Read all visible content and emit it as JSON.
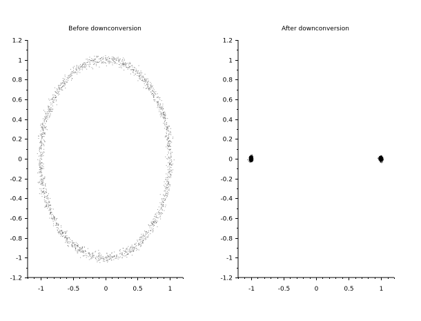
{
  "chart_data": [
    {
      "type": "scatter",
      "title": "Before downconversion",
      "xlabel": "",
      "ylabel": "",
      "xlim": [
        -1.2,
        1.2
      ],
      "ylim": [
        -1.2,
        1.2
      ],
      "x_ticks": [
        -1,
        -0.5,
        0,
        0.5,
        1
      ],
      "x_tick_labels": [
        "-1",
        "-0.5",
        "0",
        "0.5",
        "1"
      ],
      "y_ticks": [
        1.2,
        1,
        0.8,
        0.6,
        0.4,
        0.2,
        0,
        -0.2,
        -0.4,
        -0.6,
        -0.8,
        -1,
        -1.2
      ],
      "y_tick_labels": [
        "1.2",
        "1",
        "0.8",
        "0.6",
        "0.4",
        "0.2",
        "0",
        "-0.2",
        "-0.4",
        "-0.6",
        "-0.8",
        "-1",
        "-1.2"
      ],
      "grid": false,
      "series": [
        {
          "description_shape": "ring",
          "center": [
            0,
            0
          ],
          "radius": 1.0,
          "noise_std": 0.025,
          "n_points": 1800,
          "color": "#333333"
        }
      ]
    },
    {
      "type": "scatter",
      "title": "After downconversion",
      "xlabel": "",
      "ylabel": "",
      "xlim": [
        -1.2,
        1.2
      ],
      "ylim": [
        -1.2,
        1.2
      ],
      "x_ticks": [
        -1,
        -0.5,
        0,
        0.5,
        1
      ],
      "x_tick_labels": [
        "-1",
        "-0.5",
        "0",
        "0.5",
        "1"
      ],
      "y_ticks": [
        1.2,
        1,
        0.8,
        0.6,
        0.4,
        0.2,
        0,
        -0.2,
        -0.4,
        -0.6,
        -0.8,
        -1,
        -1.2
      ],
      "y_tick_labels": [
        "1.2",
        "1",
        "0.8",
        "0.6",
        "0.4",
        "0.2",
        "0",
        "-0.2",
        "-0.4",
        "-0.6",
        "-0.8",
        "-1",
        "-1.2"
      ],
      "grid": false,
      "series": [
        {
          "description_shape": "clusters",
          "centers": [
            [
              -1,
              0
            ],
            [
              1,
              0
            ]
          ],
          "noise_std": 0.012,
          "n_points_per_cluster": 900,
          "color": "#000000"
        }
      ]
    }
  ]
}
